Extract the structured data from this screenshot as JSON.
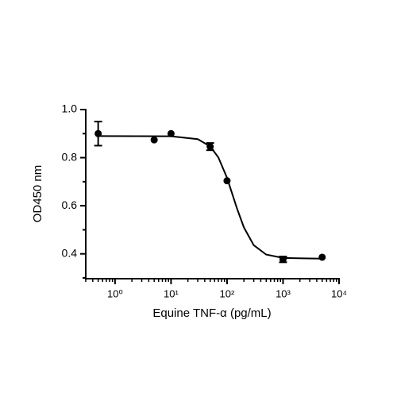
{
  "chart_data": {
    "type": "scatter",
    "xlabel": "Equine TNF-α (pg/mL)",
    "ylabel": "OD450 nm",
    "xscale": "log",
    "xlim": [
      0.3,
      10000
    ],
    "ylim": [
      0.3,
      1.0
    ],
    "xticks": [
      {
        "value": 1,
        "label": "10⁰"
      },
      {
        "value": 10,
        "label": "10¹"
      },
      {
        "value": 100,
        "label": "10²"
      },
      {
        "value": 1000,
        "label": "10³"
      },
      {
        "value": 10000,
        "label": "10⁴"
      }
    ],
    "yticks": [
      {
        "value": 1.0,
        "label": "1.0"
      },
      0.8,
      0.6,
      0.4
    ],
    "xminorticks": [
      0.3,
      0.4,
      0.5,
      0.6,
      0.7,
      0.8,
      0.9,
      2,
      3,
      4,
      5,
      6,
      7,
      8,
      9,
      20,
      30,
      40,
      50,
      60,
      70,
      80,
      90,
      200,
      300,
      400,
      500,
      600,
      700,
      800,
      900,
      2000,
      3000,
      4000,
      5000,
      6000,
      7000,
      8000,
      9000
    ],
    "yminorticks": [
      0.3,
      0.5,
      0.7,
      0.9
    ],
    "series": [
      {
        "type": "scatter",
        "color": "#000000",
        "x": [
          0.5,
          5,
          10,
          50,
          100,
          1000,
          5000
        ],
        "values": [
          0.9,
          0.874,
          0.9,
          0.846,
          0.704,
          0.377,
          0.386
        ],
        "errors": [
          0.05,
          null,
          null,
          0.015,
          null,
          0.012,
          null
        ]
      },
      {
        "type": "line",
        "color": "#000000",
        "x": [
          0.5,
          10,
          30,
          50,
          70,
          100,
          150,
          200,
          300,
          500,
          1000,
          5000
        ],
        "values": [
          0.89,
          0.889,
          0.877,
          0.847,
          0.801,
          0.716,
          0.59,
          0.51,
          0.436,
          0.397,
          0.383,
          0.38
        ]
      }
    ]
  }
}
